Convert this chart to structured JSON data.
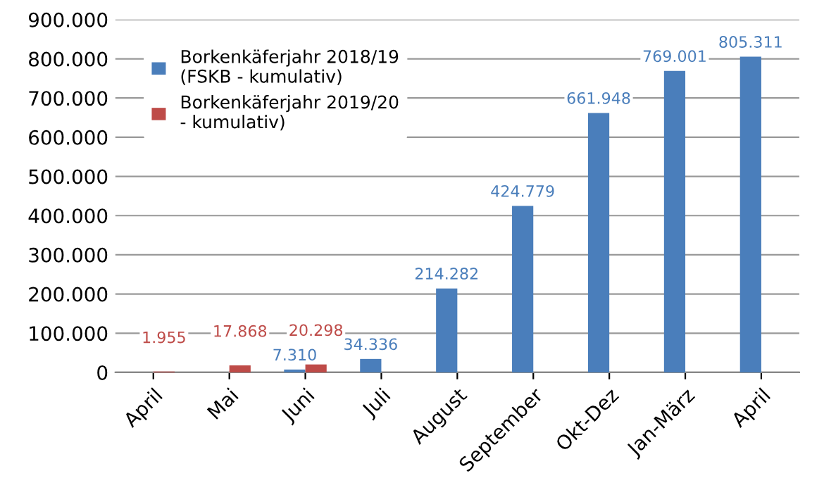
{
  "chart_data": {
    "type": "bar",
    "categories": [
      "April",
      "Mai",
      "Juni",
      "Juli",
      "August",
      "September",
      "Okt-Dez",
      "Jan-März",
      "April"
    ],
    "series": [
      {
        "name": "Borkenkäferjahr 2018/19\n(FSKB - kumulativ)",
        "color": "#4a7ebb",
        "values": [
          null,
          null,
          7310,
          34336,
          214282,
          424779,
          661948,
          769001,
          805311
        ],
        "value_labels": [
          null,
          null,
          "7.310",
          "34.336",
          "214.282",
          "424.779",
          "661.948",
          "769.001",
          "805.311"
        ]
      },
      {
        "name": "Borkenkäferjahr 2019/20\n- kumulativ)",
        "color": "#be4b48",
        "values": [
          1955,
          17868,
          20298,
          null,
          null,
          null,
          null,
          null,
          null
        ],
        "value_labels": [
          "1.955",
          "17.868",
          "20.298",
          null,
          null,
          null,
          null,
          null,
          null
        ]
      }
    ],
    "ylim": [
      0,
      900000
    ],
    "yticks": [
      {
        "value": 0,
        "label": "0"
      },
      {
        "value": 100000,
        "label": "100.000"
      },
      {
        "value": 200000,
        "label": "200.000"
      },
      {
        "value": 300000,
        "label": "300.000"
      },
      {
        "value": 400000,
        "label": "400.000"
      },
      {
        "value": 500000,
        "label": "500.000"
      },
      {
        "value": 600000,
        "label": "600.000"
      },
      {
        "value": 700000,
        "label": "700.000"
      },
      {
        "value": 800000,
        "label": "800.000"
      },
      {
        "value": 900000,
        "label": "900.000"
      }
    ],
    "grid": "y",
    "legend": "top left"
  }
}
